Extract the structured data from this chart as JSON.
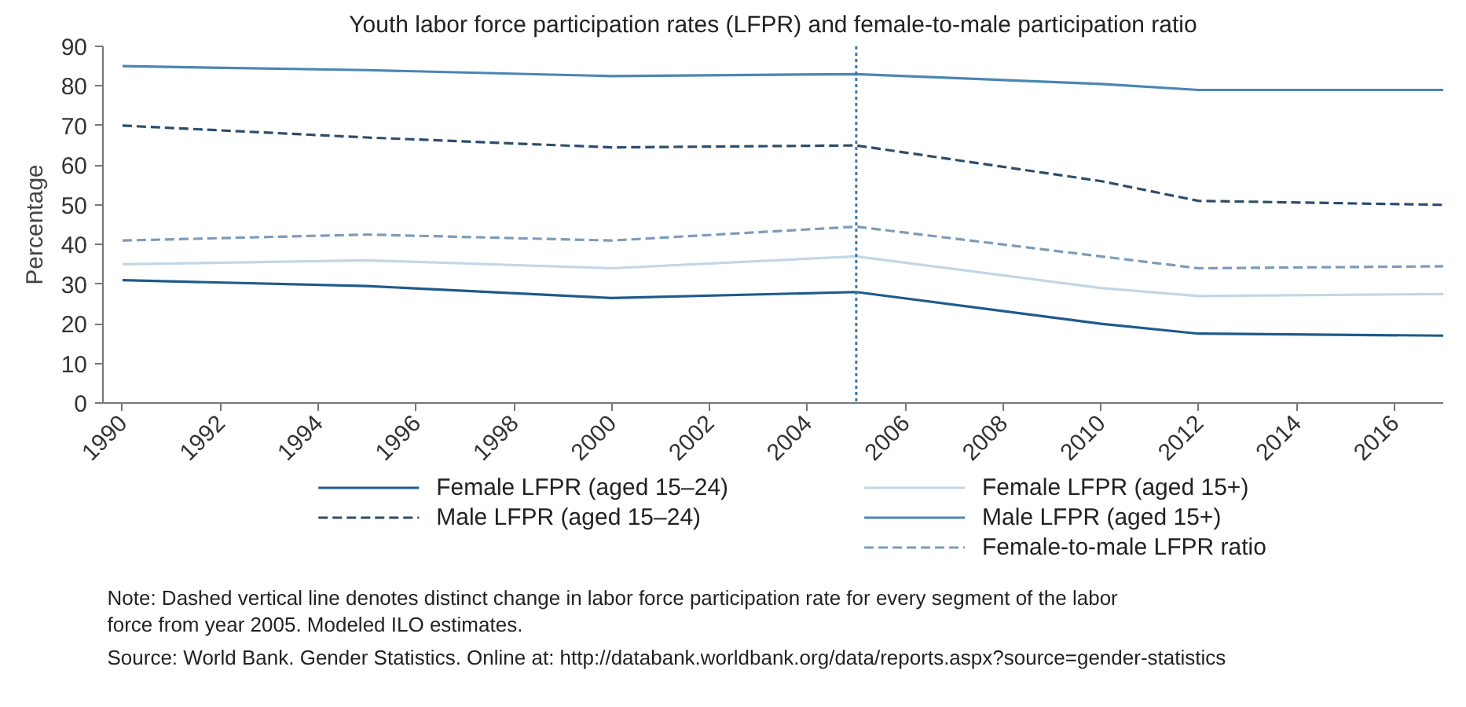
{
  "chart_data": {
    "type": "line",
    "title": "Youth labor force participation rates (LFPR) and female-to-male participation ratio",
    "ylabel": "Percentage",
    "x": [
      1990,
      1995,
      2000,
      2005,
      2010,
      2012,
      2017
    ],
    "series": [
      {
        "name": "Female LFPR (aged 15–24)",
        "color": "#1f5a8c",
        "line_style": "solid",
        "values": [
          31,
          29.5,
          26.5,
          28,
          20,
          17.5,
          17
        ]
      },
      {
        "name": "Male LFPR (aged 15–24)",
        "color": "#2c4d6c",
        "line_style": "dashed",
        "values": [
          70,
          67,
          64.5,
          65,
          56,
          51,
          50
        ]
      },
      {
        "name": "Female LFPR (aged 15+)",
        "color": "#c2d6e6",
        "line_style": "solid",
        "values": [
          35,
          36,
          34,
          37,
          29,
          27,
          27.5
        ]
      },
      {
        "name": "Male LFPR (aged 15+)",
        "color": "#4a86b4",
        "line_style": "solid",
        "values": [
          85,
          84,
          82.5,
          83,
          80.5,
          79,
          79
        ]
      },
      {
        "name": "Female-to-male LFPR ratio",
        "color": "#7c9cba",
        "line_style": "dashed",
        "values": [
          41,
          42.5,
          41,
          44.5,
          37,
          34,
          34.5
        ]
      }
    ],
    "xlim": [
      1989.6,
      2017
    ],
    "ylim": [
      0,
      90
    ],
    "xticks": [
      1990,
      1992,
      1994,
      1996,
      1998,
      2000,
      2002,
      2004,
      2006,
      2008,
      2010,
      2012,
      2014,
      2016
    ],
    "yticks": [
      0,
      10,
      20,
      30,
      40,
      50,
      60,
      70,
      80,
      90
    ],
    "ref_lines": [
      {
        "axis": "x",
        "value": 2005,
        "color": "#3a7ab0",
        "line_style": "dotted"
      }
    ],
    "grid": false,
    "legend": "bottom",
    "annotations": [
      "Note: Dashed vertical line denotes distinct change in labor force participation rate for every segment of the labor",
      "force from year 2005. Modeled ILO estimates.",
      "Source: World Bank. Gender Statistics. Online at: http://databank.worldbank.org/data/reports.aspx?source=gender-statistics"
    ]
  }
}
